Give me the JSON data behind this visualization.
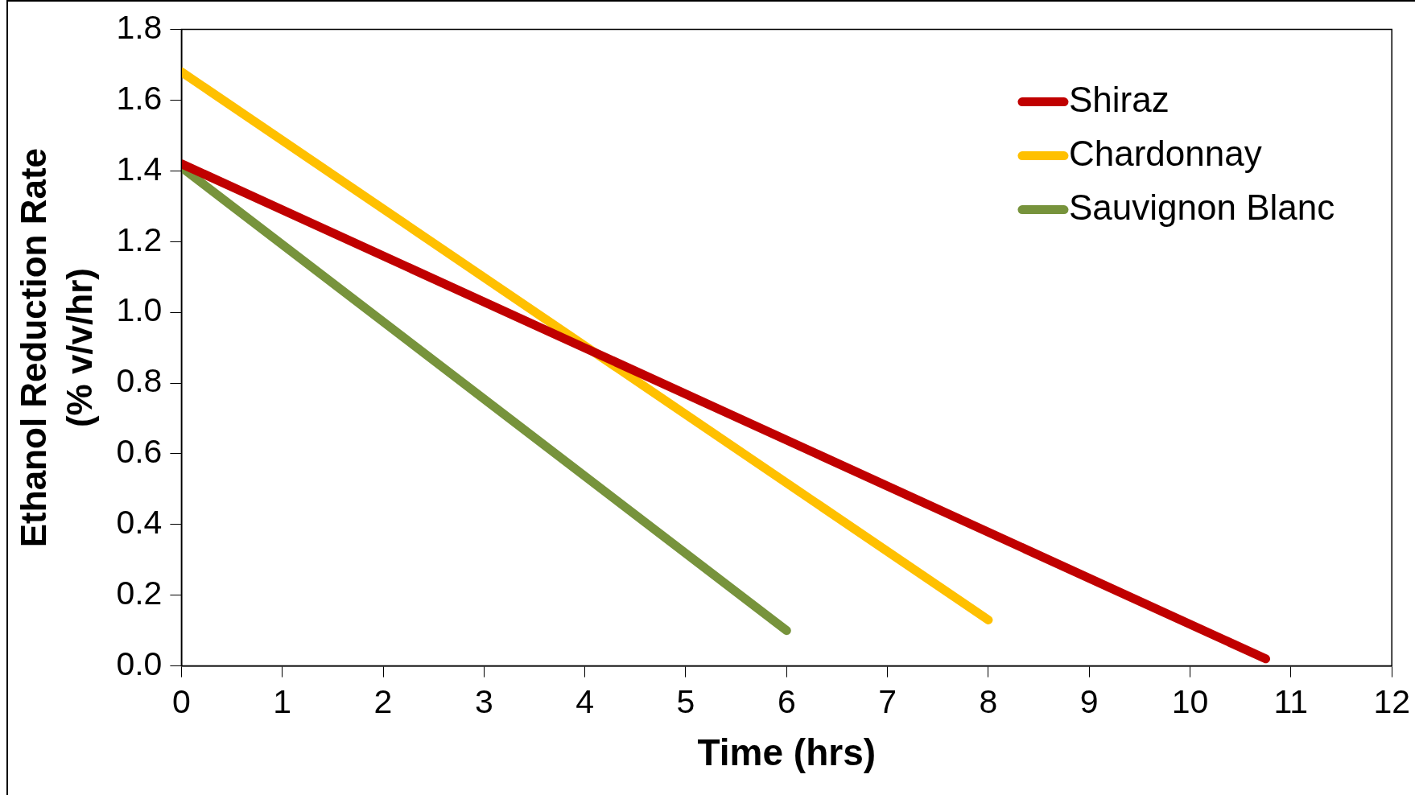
{
  "chart_data": {
    "type": "line",
    "xlabel": "Time (hrs)",
    "ylabel": "Ethanol Reduction Rate\n(% v/v/hr)",
    "xlim": [
      0,
      12
    ],
    "xticks": [
      0,
      1,
      2,
      3,
      4,
      5,
      6,
      7,
      8,
      9,
      10,
      11,
      12
    ],
    "ylim": [
      0,
      1.8
    ],
    "yticks": [
      {
        "value": 0,
        "label": "0.0"
      },
      {
        "value": 0.2,
        "label": "0.2"
      },
      {
        "value": 0.4,
        "label": "0.4"
      },
      {
        "value": 0.6,
        "label": "0.6"
      },
      {
        "value": 0.8,
        "label": "0.8"
      },
      {
        "value": 1,
        "label": "1.0"
      },
      {
        "value": 1.2,
        "label": "1.2"
      },
      {
        "value": 1.4,
        "label": "1.4"
      },
      {
        "value": 1.6,
        "label": "1.6"
      },
      {
        "value": 1.8,
        "label": "1.8"
      }
    ],
    "series": [
      {
        "name": "Shiraz",
        "color": "#c00000",
        "x": [
          0,
          10.75
        ],
        "values": [
          1.42,
          0.02
        ]
      },
      {
        "name": "Chardonnay",
        "color": "#ffc000",
        "x": [
          0,
          8
        ],
        "values": [
          1.68,
          0.13
        ]
      },
      {
        "name": "Sauvignon Blanc",
        "color": "#77933c",
        "x": [
          0,
          6
        ],
        "values": [
          1.41,
          0.1
        ]
      }
    ],
    "grid": false,
    "legend": "top right",
    "marker": "none",
    "line_style": "solid"
  }
}
